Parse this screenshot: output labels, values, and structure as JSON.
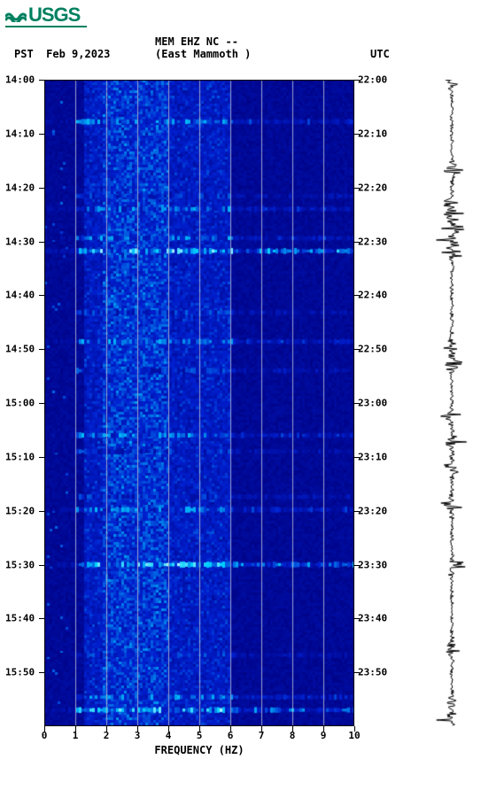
{
  "logo_text": "USGS",
  "header": {
    "line1": "MEM EHZ NC --",
    "pst_label": "PST",
    "date": "Feb 9,2023",
    "station": "(East Mammoth )",
    "utc_label": "UTC"
  },
  "chart": {
    "type": "spectrogram",
    "x_axis": {
      "title": "FREQUENCY (HZ)",
      "min": 0,
      "max": 10,
      "ticks": [
        0,
        1,
        2,
        3,
        4,
        5,
        6,
        7,
        8,
        9,
        10
      ],
      "gridlines": [
        1,
        2,
        3,
        4,
        5,
        6,
        7,
        8,
        9
      ],
      "gridline_color": "#9aa0d0",
      "label_fontsize": 11
    },
    "left_axis": {
      "label": "PST",
      "ticks": [
        "14:00",
        "14:10",
        "14:20",
        "14:30",
        "14:40",
        "14:50",
        "15:00",
        "15:10",
        "15:20",
        "15:30",
        "15:40",
        "15:50"
      ],
      "positions": [
        0,
        0.0833,
        0.1667,
        0.25,
        0.3333,
        0.4167,
        0.5,
        0.5833,
        0.6667,
        0.75,
        0.8333,
        0.9167
      ]
    },
    "right_axis": {
      "label": "UTC",
      "ticks": [
        "22:00",
        "22:10",
        "22:20",
        "22:30",
        "22:40",
        "22:50",
        "23:00",
        "23:10",
        "23:20",
        "23:30",
        "23:40",
        "23:50"
      ],
      "positions": [
        0,
        0.0833,
        0.1667,
        0.25,
        0.3333,
        0.4167,
        0.5,
        0.5833,
        0.6667,
        0.75,
        0.8333,
        0.9167
      ]
    },
    "colormap": {
      "low": "#000080",
      "mid": "#0020d0",
      "high": "#00d0ff",
      "peak": "#e0ffff"
    },
    "bright_bands": [
      {
        "t": 0.065,
        "series": "high"
      },
      {
        "t": 0.18,
        "series": "mid"
      },
      {
        "t": 0.2,
        "series": "high"
      },
      {
        "t": 0.245,
        "series": "high"
      },
      {
        "t": 0.265,
        "series": "peak"
      },
      {
        "t": 0.36,
        "series": "mid"
      },
      {
        "t": 0.405,
        "series": "high"
      },
      {
        "t": 0.45,
        "series": "mid"
      },
      {
        "t": 0.55,
        "series": "high"
      },
      {
        "t": 0.575,
        "series": "mid"
      },
      {
        "t": 0.645,
        "series": "mid"
      },
      {
        "t": 0.665,
        "series": "high"
      },
      {
        "t": 0.75,
        "series": "peak"
      },
      {
        "t": 0.89,
        "series": "mid"
      },
      {
        "t": 0.955,
        "series": "high"
      },
      {
        "t": 0.975,
        "series": "peak"
      }
    ],
    "seismo_events": [
      0.0,
      0.14,
      0.19,
      0.21,
      0.23,
      0.25,
      0.27,
      0.41,
      0.44,
      0.52,
      0.56,
      0.6,
      0.66,
      0.75,
      0.88,
      0.96,
      0.99
    ],
    "seismo_color": "#000000"
  }
}
